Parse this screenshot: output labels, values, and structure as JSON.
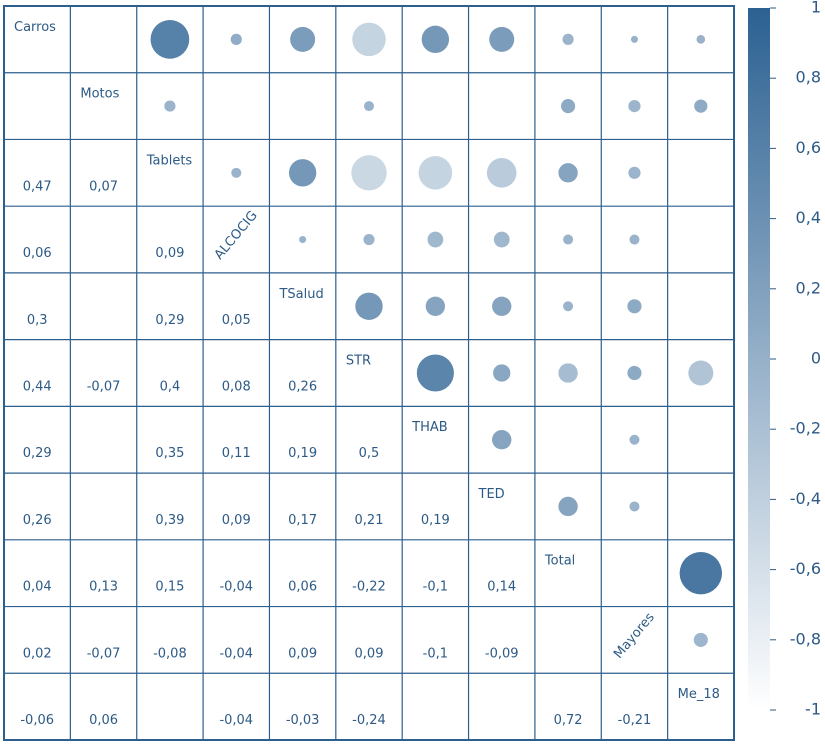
{
  "chart_data": {
    "type": "corrplot",
    "variables": [
      "Carros",
      "Motos",
      "Tablets",
      "ALCOCIG",
      "TSalud",
      "STR",
      "THAB",
      "TED",
      "Total",
      "Mayores",
      "Me_18"
    ],
    "lower_values": [
      [],
      [
        null
      ],
      [
        0.47,
        0.07
      ],
      [
        0.06,
        null,
        0.09
      ],
      [
        0.3,
        null,
        0.29,
        0.05
      ],
      [
        0.44,
        -0.07,
        0.4,
        0.08,
        0.26
      ],
      [
        0.29,
        null,
        0.35,
        0.11,
        0.19,
        0.5
      ],
      [
        0.26,
        null,
        0.39,
        0.09,
        0.17,
        0.21,
        0.19
      ],
      [
        0.04,
        0.13,
        0.15,
        -0.04,
        0.06,
        -0.22,
        -0.1,
        0.14
      ],
      [
        0.02,
        -0.07,
        -0.08,
        -0.04,
        0.09,
        0.09,
        -0.1,
        -0.09,
        null
      ],
      [
        -0.06,
        0.06,
        null,
        -0.04,
        -0.03,
        -0.24,
        null,
        null,
        0.72,
        -0.21
      ]
    ],
    "lower_labels": [
      [],
      [
        null
      ],
      [
        "0,47",
        "0,07"
      ],
      [
        "0,06",
        null,
        "0,09"
      ],
      [
        "0,3",
        null,
        "0,29",
        "0,05"
      ],
      [
        "0,44",
        "-0,07",
        "0,4",
        "0,08",
        "0,26"
      ],
      [
        "0,29",
        null,
        "0,35",
        "0,11",
        "0,19",
        "0,5"
      ],
      [
        "0,26",
        null,
        "0,39",
        "0,09",
        "0,17",
        "0,21",
        "0,19"
      ],
      [
        "0,04",
        "0,13",
        "0,15",
        "-0,04",
        "0,06",
        "-0,22",
        "-0,1",
        "0,14"
      ],
      [
        "0,02",
        "-0,07",
        "-0,08",
        "-0,04",
        "0,09",
        "0,09",
        "-0,1",
        "-0,09",
        null
      ],
      [
        "-0,06",
        "0,06",
        null,
        "-0,04",
        "-0,03",
        "-0,24",
        null,
        null,
        "0,72",
        "-0,21"
      ]
    ],
    "upper_values": [
      [
        null,
        0.6,
        0.05,
        0.25,
        -0.45,
        0.3,
        0.25,
        -0.05,
        -0.02,
        -0.03
      ],
      [
        -0.05,
        null,
        null,
        -0.04,
        null,
        null,
        0.08,
        -0.06,
        0.07
      ],
      [
        -0.04,
        0.3,
        -0.5,
        -0.45,
        -0.35,
        0.15,
        -0.06,
        null
      ],
      [
        -0.02,
        -0.05,
        -0.1,
        -0.1,
        -0.04,
        -0.04,
        null
      ],
      [
        0.3,
        0.15,
        0.15,
        -0.04,
        0.08,
        null
      ],
      [
        0.55,
        0.12,
        -0.15,
        0.08,
        -0.25
      ],
      [
        0.15,
        null,
        -0.04,
        null
      ],
      [
        0.15,
        -0.04,
        null
      ],
      [
        null,
        0.72
      ],
      [
        -0.08
      ],
      []
    ],
    "colors": {
      "low": "#ffffff",
      "high": "#2c6192"
    },
    "clim": [
      -1,
      1
    ],
    "cticks": [
      1,
      {
        "value": 0.8,
        "label": "0,8"
      },
      {
        "value": 0.6,
        "label": "0,6"
      },
      {
        "value": 0.4,
        "label": "0,4"
      },
      {
        "value": 0.2,
        "label": "0,2"
      },
      0,
      {
        "value": -0.2,
        "label": "-0,2"
      },
      {
        "value": -0.4,
        "label": "-0,4"
      },
      {
        "value": -0.6,
        "label": "-0,6"
      },
      {
        "value": -0.8,
        "label": "-0,8"
      },
      -1
    ]
  }
}
